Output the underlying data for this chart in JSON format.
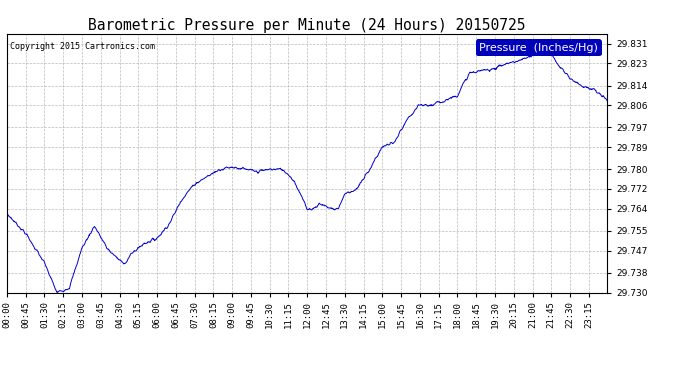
{
  "title": "Barometric Pressure per Minute (24 Hours) 20150725",
  "copyright": "Copyright 2015 Cartronics.com",
  "legend_label": "Pressure  (Inches/Hg)",
  "line_color": "#0000cc",
  "background_color": "#ffffff",
  "plot_bg_color": "#ffffff",
  "grid_color": "#aaaaaa",
  "ylim": [
    29.73,
    29.835
  ],
  "yticks": [
    29.73,
    29.738,
    29.747,
    29.755,
    29.764,
    29.772,
    29.78,
    29.789,
    29.797,
    29.806,
    29.814,
    29.823,
    29.831
  ],
  "xtick_labels": [
    "00:00",
    "00:45",
    "01:30",
    "02:15",
    "03:00",
    "03:45",
    "04:30",
    "05:15",
    "06:00",
    "06:45",
    "07:30",
    "08:15",
    "09:00",
    "09:45",
    "10:30",
    "11:15",
    "12:00",
    "12:45",
    "13:30",
    "14:15",
    "15:00",
    "15:45",
    "16:30",
    "17:15",
    "18:00",
    "18:45",
    "19:30",
    "20:15",
    "21:00",
    "21:45",
    "22:30",
    "23:15"
  ],
  "title_fontsize": 10.5,
  "tick_fontsize": 6.5,
  "legend_fontsize": 8,
  "copyright_fontsize": 6,
  "key_t": [
    0,
    0.75,
    1.5,
    2.0,
    2.5,
    3.0,
    3.5,
    4.0,
    4.5,
    4.75,
    5.0,
    5.5,
    6.0,
    6.5,
    7.0,
    7.5,
    8.0,
    8.5,
    9.0,
    9.5,
    10.0,
    10.5,
    11.0,
    11.25,
    11.5,
    12.0,
    12.25,
    12.5,
    13.0,
    13.25,
    13.5,
    14.0,
    14.5,
    15.0,
    15.5,
    16.0,
    16.5,
    17.0,
    17.5,
    18.0,
    18.5,
    19.0,
    19.5,
    20.0,
    20.5,
    21.0,
    21.5,
    22.0,
    22.5,
    23.0,
    23.5,
    24.0
  ],
  "key_v": [
    29.762,
    29.754,
    29.742,
    29.73,
    29.732,
    29.748,
    29.757,
    29.748,
    29.743,
    29.742,
    29.746,
    29.75,
    29.752,
    29.758,
    29.768,
    29.774,
    29.777,
    29.78,
    29.781,
    29.78,
    29.779,
    29.78,
    29.78,
    29.778,
    29.775,
    29.764,
    29.764,
    29.766,
    29.764,
    29.764,
    29.77,
    29.772,
    29.78,
    29.789,
    29.791,
    29.8,
    29.806,
    29.806,
    29.808,
    29.81,
    29.819,
    29.82,
    29.821,
    29.823,
    29.824,
    29.826,
    29.831,
    29.823,
    29.817,
    29.814,
    29.812,
    29.808
  ]
}
